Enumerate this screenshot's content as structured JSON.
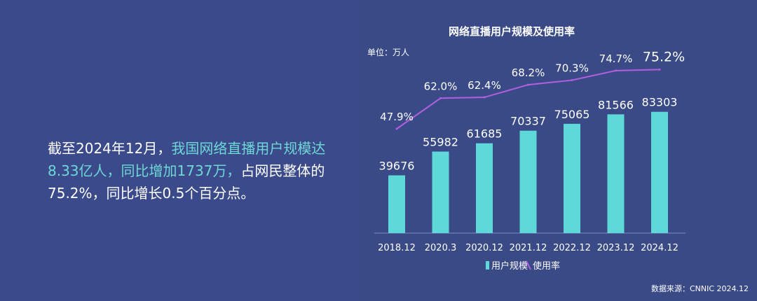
{
  "summary": {
    "part1": "截至2024年12月，",
    "part2": "我国网络直播用户规模达8.33亿人，同比增加1737万，",
    "part3": "占网民整体的75.2%，同比增长0.5个百分点。"
  },
  "source": "数据来源：CNNIC 2024.12",
  "chart_data": {
    "type": "bar",
    "title": "网络直播用户规模及使用率",
    "unit_label": "单位：万人",
    "categories": [
      "2018.12",
      "2020.3",
      "2020.12",
      "2021.12",
      "2022.12",
      "2023.12",
      "2024.12"
    ],
    "series": [
      {
        "name": "用户规模",
        "type": "bar",
        "values": [
          39676,
          55982,
          61685,
          70337,
          75065,
          81566,
          83303
        ]
      },
      {
        "name": "使用率",
        "type": "line",
        "values": [
          47.9,
          62.0,
          62.4,
          68.2,
          70.3,
          74.7,
          75.2
        ],
        "labels": [
          "47.9%",
          "62.0%",
          "62.4%",
          "68.2%",
          "70.3%",
          "74.7%",
          "75.2%"
        ]
      }
    ],
    "legend_position": "bottom",
    "colors": {
      "bar": "#5ed8d8",
      "line": "#b15fe0",
      "background": "#394a87"
    }
  }
}
